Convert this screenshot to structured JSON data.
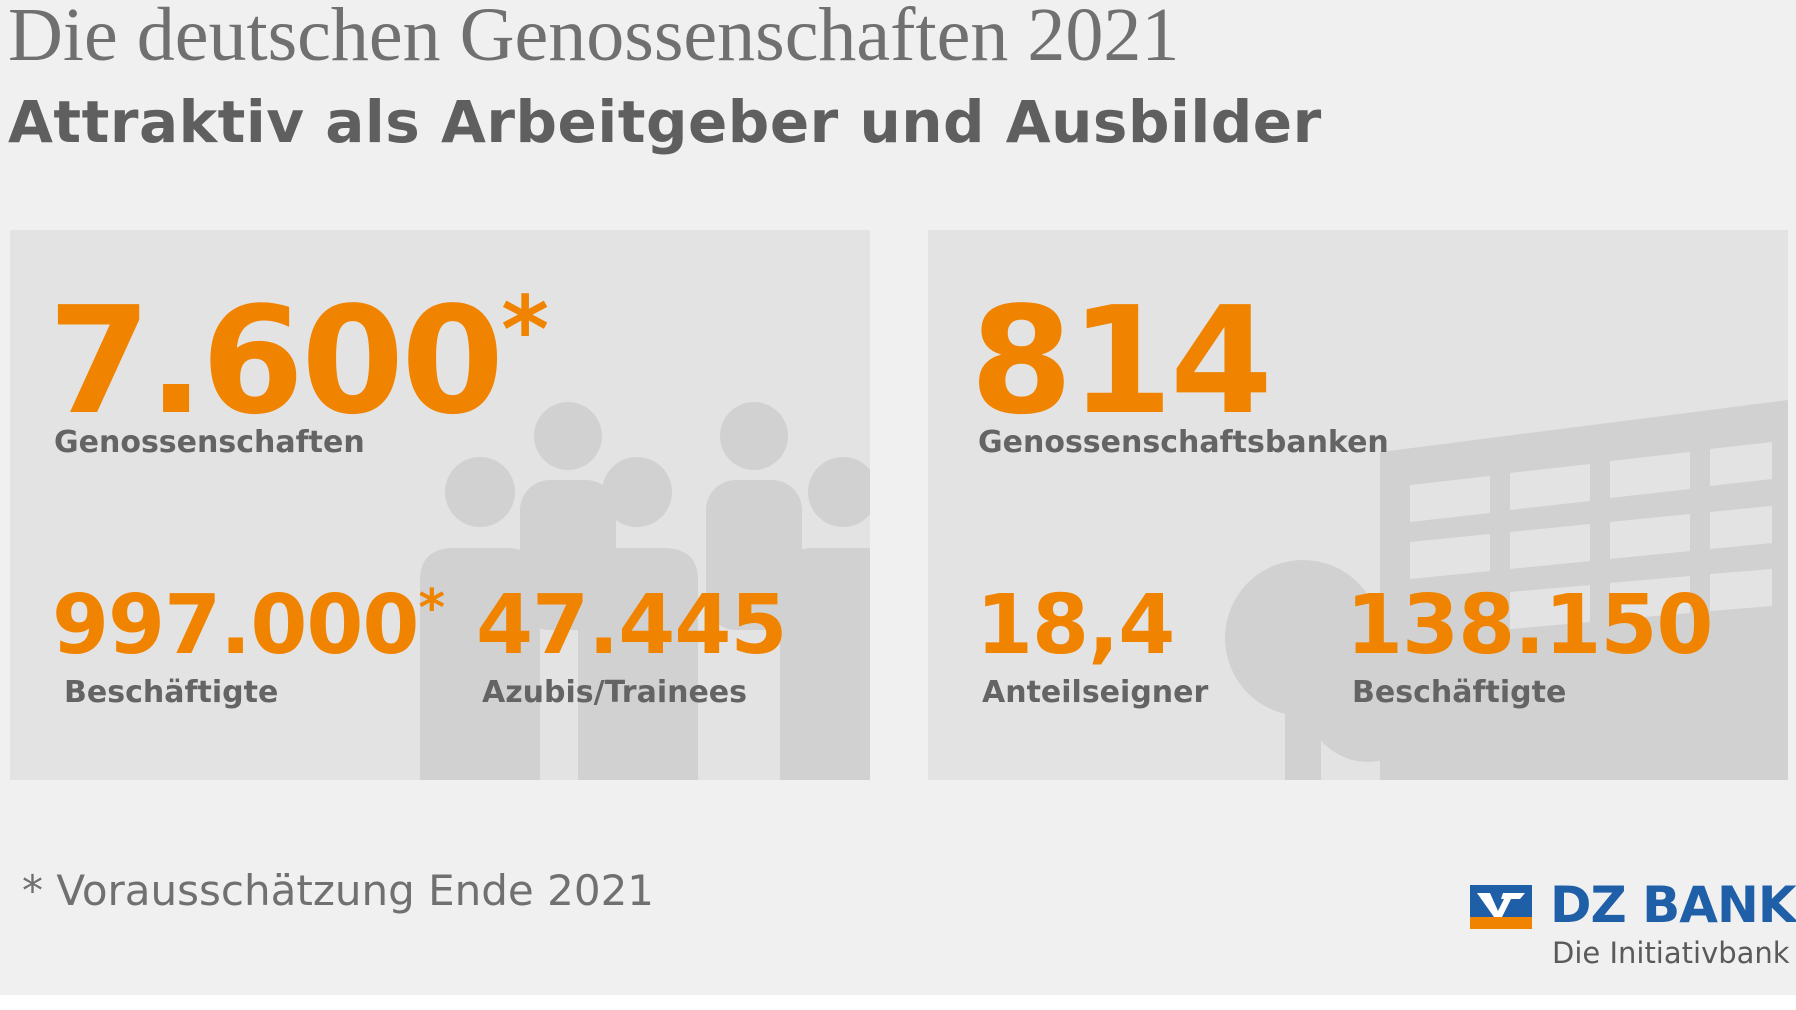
{
  "header": {
    "title": "Die deutschen Genossenschaften 2021",
    "subtitle": "Attraktiv als Arbeitgeber und Ausbilder"
  },
  "left_panel": {
    "main_value": "7.600",
    "main_star": "*",
    "main_label": "Genossenschaften",
    "stat1_value": "997.000",
    "stat1_star": "*",
    "stat1_label": "Beschäftigte",
    "stat2_value": "47.445",
    "stat2_label": "Azubis/Trainees",
    "background_icon": "people-group-icon"
  },
  "right_panel": {
    "main_value": "814",
    "main_label": "Genossenschaftsbanken",
    "stat1_value": "18,4",
    "stat1_label": "Anteilseigner",
    "stat2_value": "138.150",
    "stat2_label": "Beschäftigte",
    "background_icon": "bank-building-icon"
  },
  "footnote": "* Vorausschätzung Ende 2021",
  "logo": {
    "name": "DZ BANK",
    "tagline": "Die Initiativbank"
  },
  "colors": {
    "accent": "#f08400",
    "brand_blue": "#1f5fa8",
    "text_gray": "#646464",
    "panel_bg": "#e4e3e3",
    "page_bg": "#f0f0f0"
  }
}
